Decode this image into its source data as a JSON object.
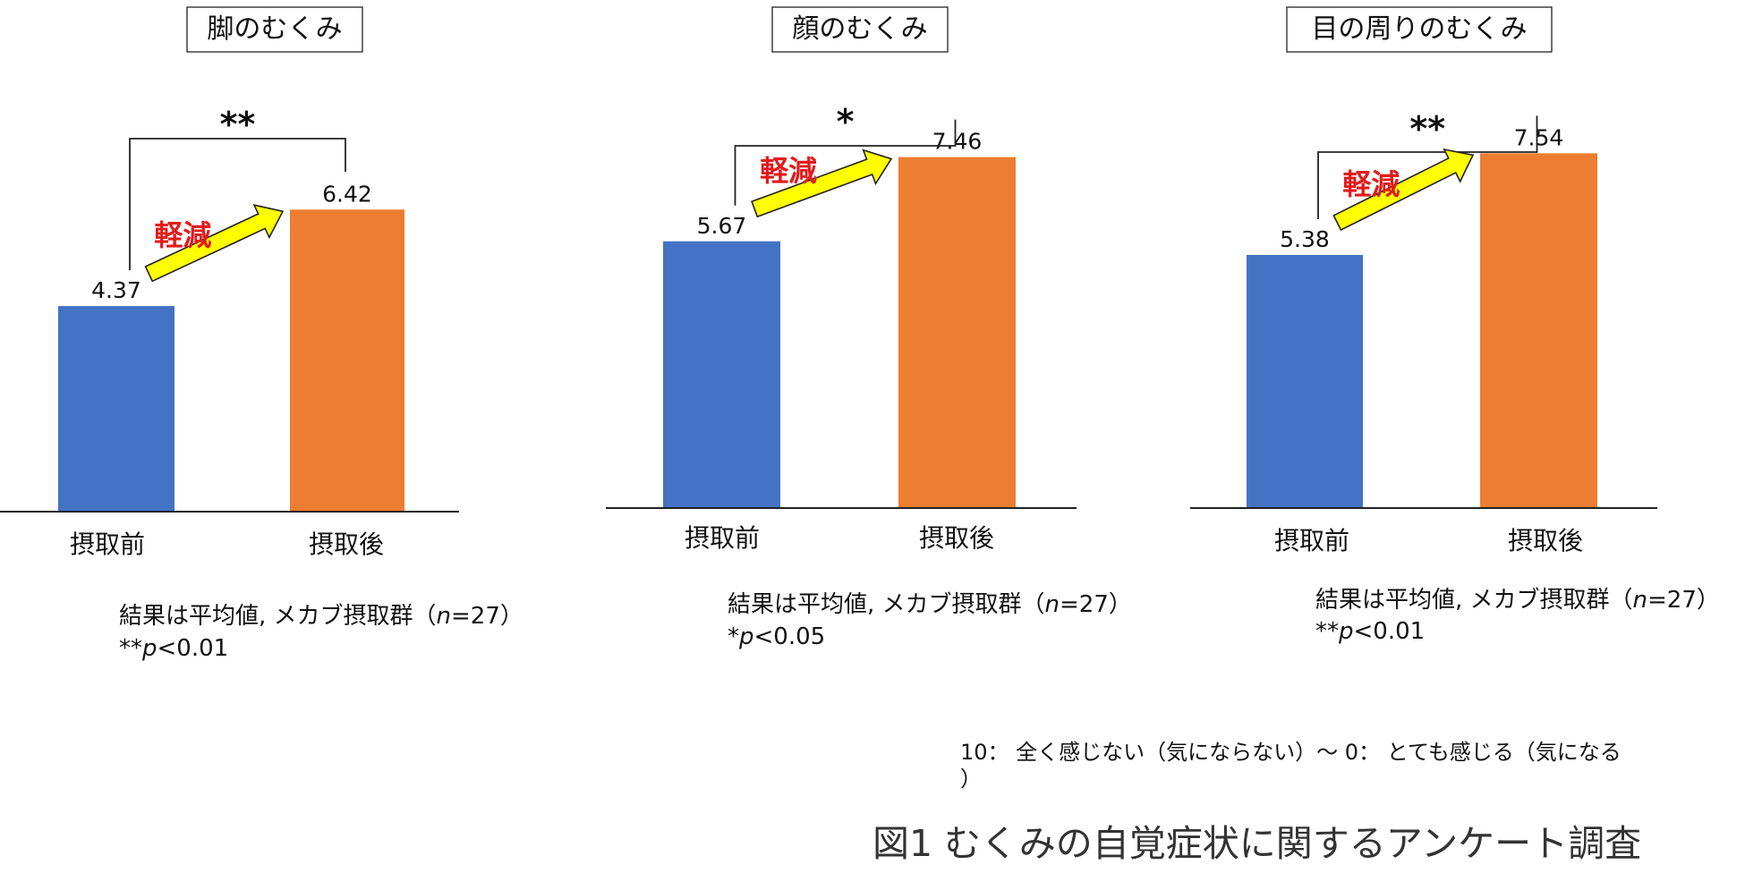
{
  "figure_caption": "図1 むくみの自覚症状に関するアンケート調査",
  "scale_note": "10： 全く感じない（気にならない）～ 0： とても感じる（気になる）",
  "arrow_label": "軽減",
  "colors": {
    "before": "#4472C4",
    "after": "#ED7D31",
    "arrow_fill": "#FFFF00",
    "arrow_label": "#E31B1B"
  },
  "chart_data": [
    {
      "type": "bar",
      "title": "脚のむくみ",
      "categories": [
        "摂取前",
        "摂取後"
      ],
      "values": [
        4.37,
        6.42
      ],
      "value_labels": [
        "4.37",
        "6.42"
      ],
      "significance": "**",
      "note_line1_prefix": "結果は平均値, メカブ摂取群（",
      "note_n_symbol": "n",
      "note_line1_suffix": "=27）",
      "note_line2_stars": "**",
      "note_p_symbol": "p",
      "note_line2_value": "<0.01"
    },
    {
      "type": "bar",
      "title": "顔のむくみ",
      "categories": [
        "摂取前",
        "摂取後"
      ],
      "values": [
        5.67,
        7.46
      ],
      "value_labels": [
        "5.67",
        "7.46"
      ],
      "significance": "*",
      "note_line1_prefix": "結果は平均値, メカブ摂取群（",
      "note_n_symbol": "n",
      "note_line1_suffix": "=27）",
      "note_line2_stars": "*",
      "note_p_symbol": "p",
      "note_line2_value": "<0.05"
    },
    {
      "type": "bar",
      "title": "目の周りのむくみ",
      "categories": [
        "摂取前",
        "摂取後"
      ],
      "values": [
        5.38,
        7.54
      ],
      "value_labels": [
        "5.38",
        "7.54"
      ],
      "significance": "**",
      "note_line1_prefix": "結果は平均値, メカブ摂取群（",
      "note_n_symbol": "n",
      "note_line1_suffix": "=27）",
      "note_line2_stars": "**",
      "note_p_symbol": "p",
      "note_line2_value": "<0.01"
    }
  ]
}
